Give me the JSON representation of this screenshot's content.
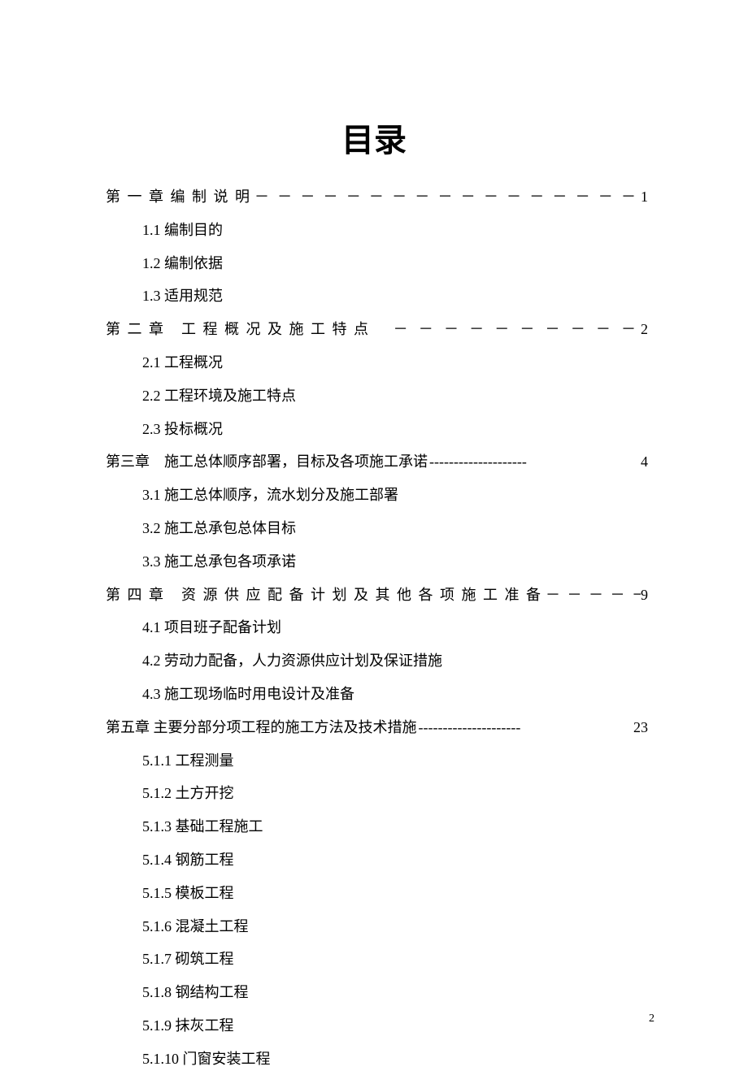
{
  "title": "目录",
  "chapters": [
    {
      "label": "第 一 章 编 制 说 明",
      "dashes": "－ － － － － － － － － － － － － － － － －",
      "page": "1",
      "spaced": true,
      "subs": [
        "1.1 编制目的",
        "1.2 编制依据",
        "1.3 适用规范"
      ]
    },
    {
      "label": "第 二 章　工 程 概 况 及 施 工 特 点",
      "dashes": "　－ － － － － － － － － －",
      "page": "2",
      "spaced": true,
      "subs": [
        "2.1 工程概况",
        "2.2 工程环境及施工特点",
        "2.3 投标概况"
      ]
    },
    {
      "label": " 第三章　施工总体顺序部署，目标及各项施工承诺",
      "dashes": "--------------------",
      "page": "4",
      "spaced": false,
      "subs": [
        "3.1 施工总体顺序，流水划分及施工部署",
        "3.2 施工总承包总体目标",
        "3.3 施工总承包各项承诺"
      ]
    },
    {
      "label": "第 四 章　资 源 供 应 配 备 计 划 及 其 他 各 项 施 工 准 备",
      "dashes": " － － － － － －",
      "page": "9",
      "spaced": true,
      "subs": [
        "4.1 项目班子配备计划",
        "4.2 劳动力配备，人力资源供应计划及保证措施",
        "4.3 施工现场临时用电设计及准备"
      ]
    },
    {
      "label": "第五章 主要分部分项工程的施工方法及技术措施",
      "dashes": "---------------------",
      "page": "23",
      "spaced": false,
      "subs": [
        "5.1.1 工程测量",
        "5.1.2 土方开挖",
        "5.1.3 基础工程施工",
        "5.1.4 钢筋工程",
        "5.1.5 模板工程",
        "5.1.6 混凝土工程",
        "5.1.7 砌筑工程",
        "5.1.8 钢结构工程",
        "5.1.9 抹灰工程",
        "5.1.10 门窗安装工程"
      ]
    }
  ],
  "pageNumber": "2",
  "style": {
    "background_color": "#ffffff",
    "text_color": "#000000",
    "title_fontsize": 40,
    "body_fontsize": 18,
    "page_num_fontsize": 14,
    "font_family": "SimSun"
  }
}
